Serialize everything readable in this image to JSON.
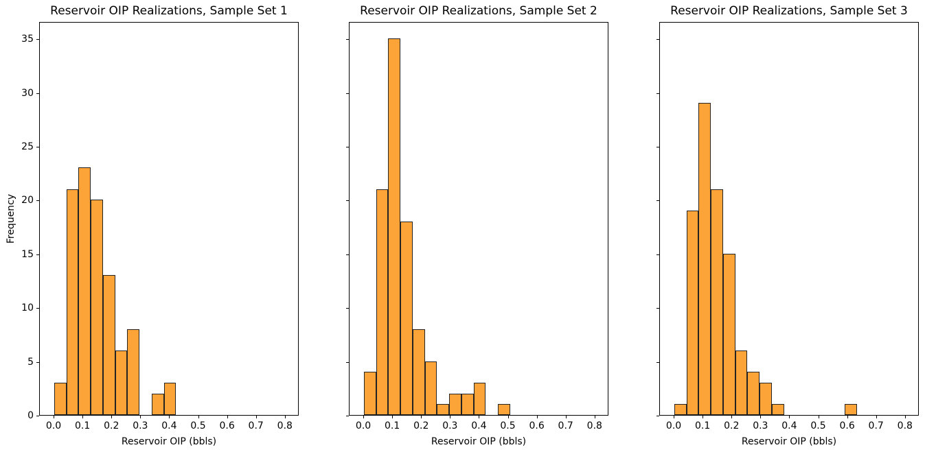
{
  "figure": {
    "background": "#ffffff",
    "colors": {
      "bar_fill": "#FCA437",
      "bar_edge": "#232323",
      "spine": "#000000",
      "text": "#000000"
    }
  },
  "chart_data": [
    {
      "type": "bar",
      "subtype": "histogram",
      "title": "Reservoir OIP Realizations, Sample Set 1",
      "xlabel": "Reservoir OIP (bbls)",
      "ylabel": "Frequency",
      "bins": {
        "range": [
          0.0,
          0.8
        ],
        "count": 19
      },
      "values": [
        3,
        21,
        23,
        20,
        13,
        6,
        8,
        0,
        2,
        3,
        0,
        0,
        0,
        0,
        0,
        0,
        0,
        0,
        0
      ],
      "xticks": [
        0.0,
        0.1,
        0.2,
        0.3,
        0.4,
        0.5,
        0.6,
        0.7,
        0.8
      ],
      "yticks": [
        0,
        5,
        10,
        15,
        20,
        25,
        30,
        35
      ],
      "xlim": [
        -0.05,
        0.848
      ],
      "ylim": [
        0,
        36.6
      ],
      "grid": false,
      "legend": null,
      "show_ytick_labels": true
    },
    {
      "type": "bar",
      "subtype": "histogram",
      "title": "Reservoir OIP Realizations, Sample Set 2",
      "xlabel": "Reservoir OIP (bbls)",
      "ylabel": "",
      "bins": {
        "range": [
          0.0,
          0.8
        ],
        "count": 19
      },
      "values": [
        4,
        21,
        35,
        18,
        8,
        5,
        1,
        2,
        2,
        3,
        0,
        1,
        0,
        0,
        0,
        0,
        0,
        0,
        0
      ],
      "xticks": [
        0.0,
        0.1,
        0.2,
        0.3,
        0.4,
        0.5,
        0.6,
        0.7,
        0.8
      ],
      "yticks": [
        0,
        5,
        10,
        15,
        20,
        25,
        30,
        35
      ],
      "xlim": [
        -0.05,
        0.848
      ],
      "ylim": [
        0,
        36.6
      ],
      "grid": false,
      "legend": null,
      "show_ytick_labels": false
    },
    {
      "type": "bar",
      "subtype": "histogram",
      "title": "Reservoir OIP Realizations, Sample Set 3",
      "xlabel": "Reservoir OIP (bbls)",
      "ylabel": "",
      "bins": {
        "range": [
          0.0,
          0.8
        ],
        "count": 19
      },
      "values": [
        1,
        19,
        29,
        21,
        15,
        6,
        4,
        3,
        1,
        0,
        0,
        0,
        0,
        0,
        1,
        0,
        0,
        0,
        0
      ],
      "xticks": [
        0.0,
        0.1,
        0.2,
        0.3,
        0.4,
        0.5,
        0.6,
        0.7,
        0.8
      ],
      "yticks": [
        0,
        5,
        10,
        15,
        20,
        25,
        30,
        35
      ],
      "xlim": [
        -0.05,
        0.848
      ],
      "ylim": [
        0,
        36.6
      ],
      "grid": false,
      "legend": null,
      "show_ytick_labels": false
    }
  ]
}
